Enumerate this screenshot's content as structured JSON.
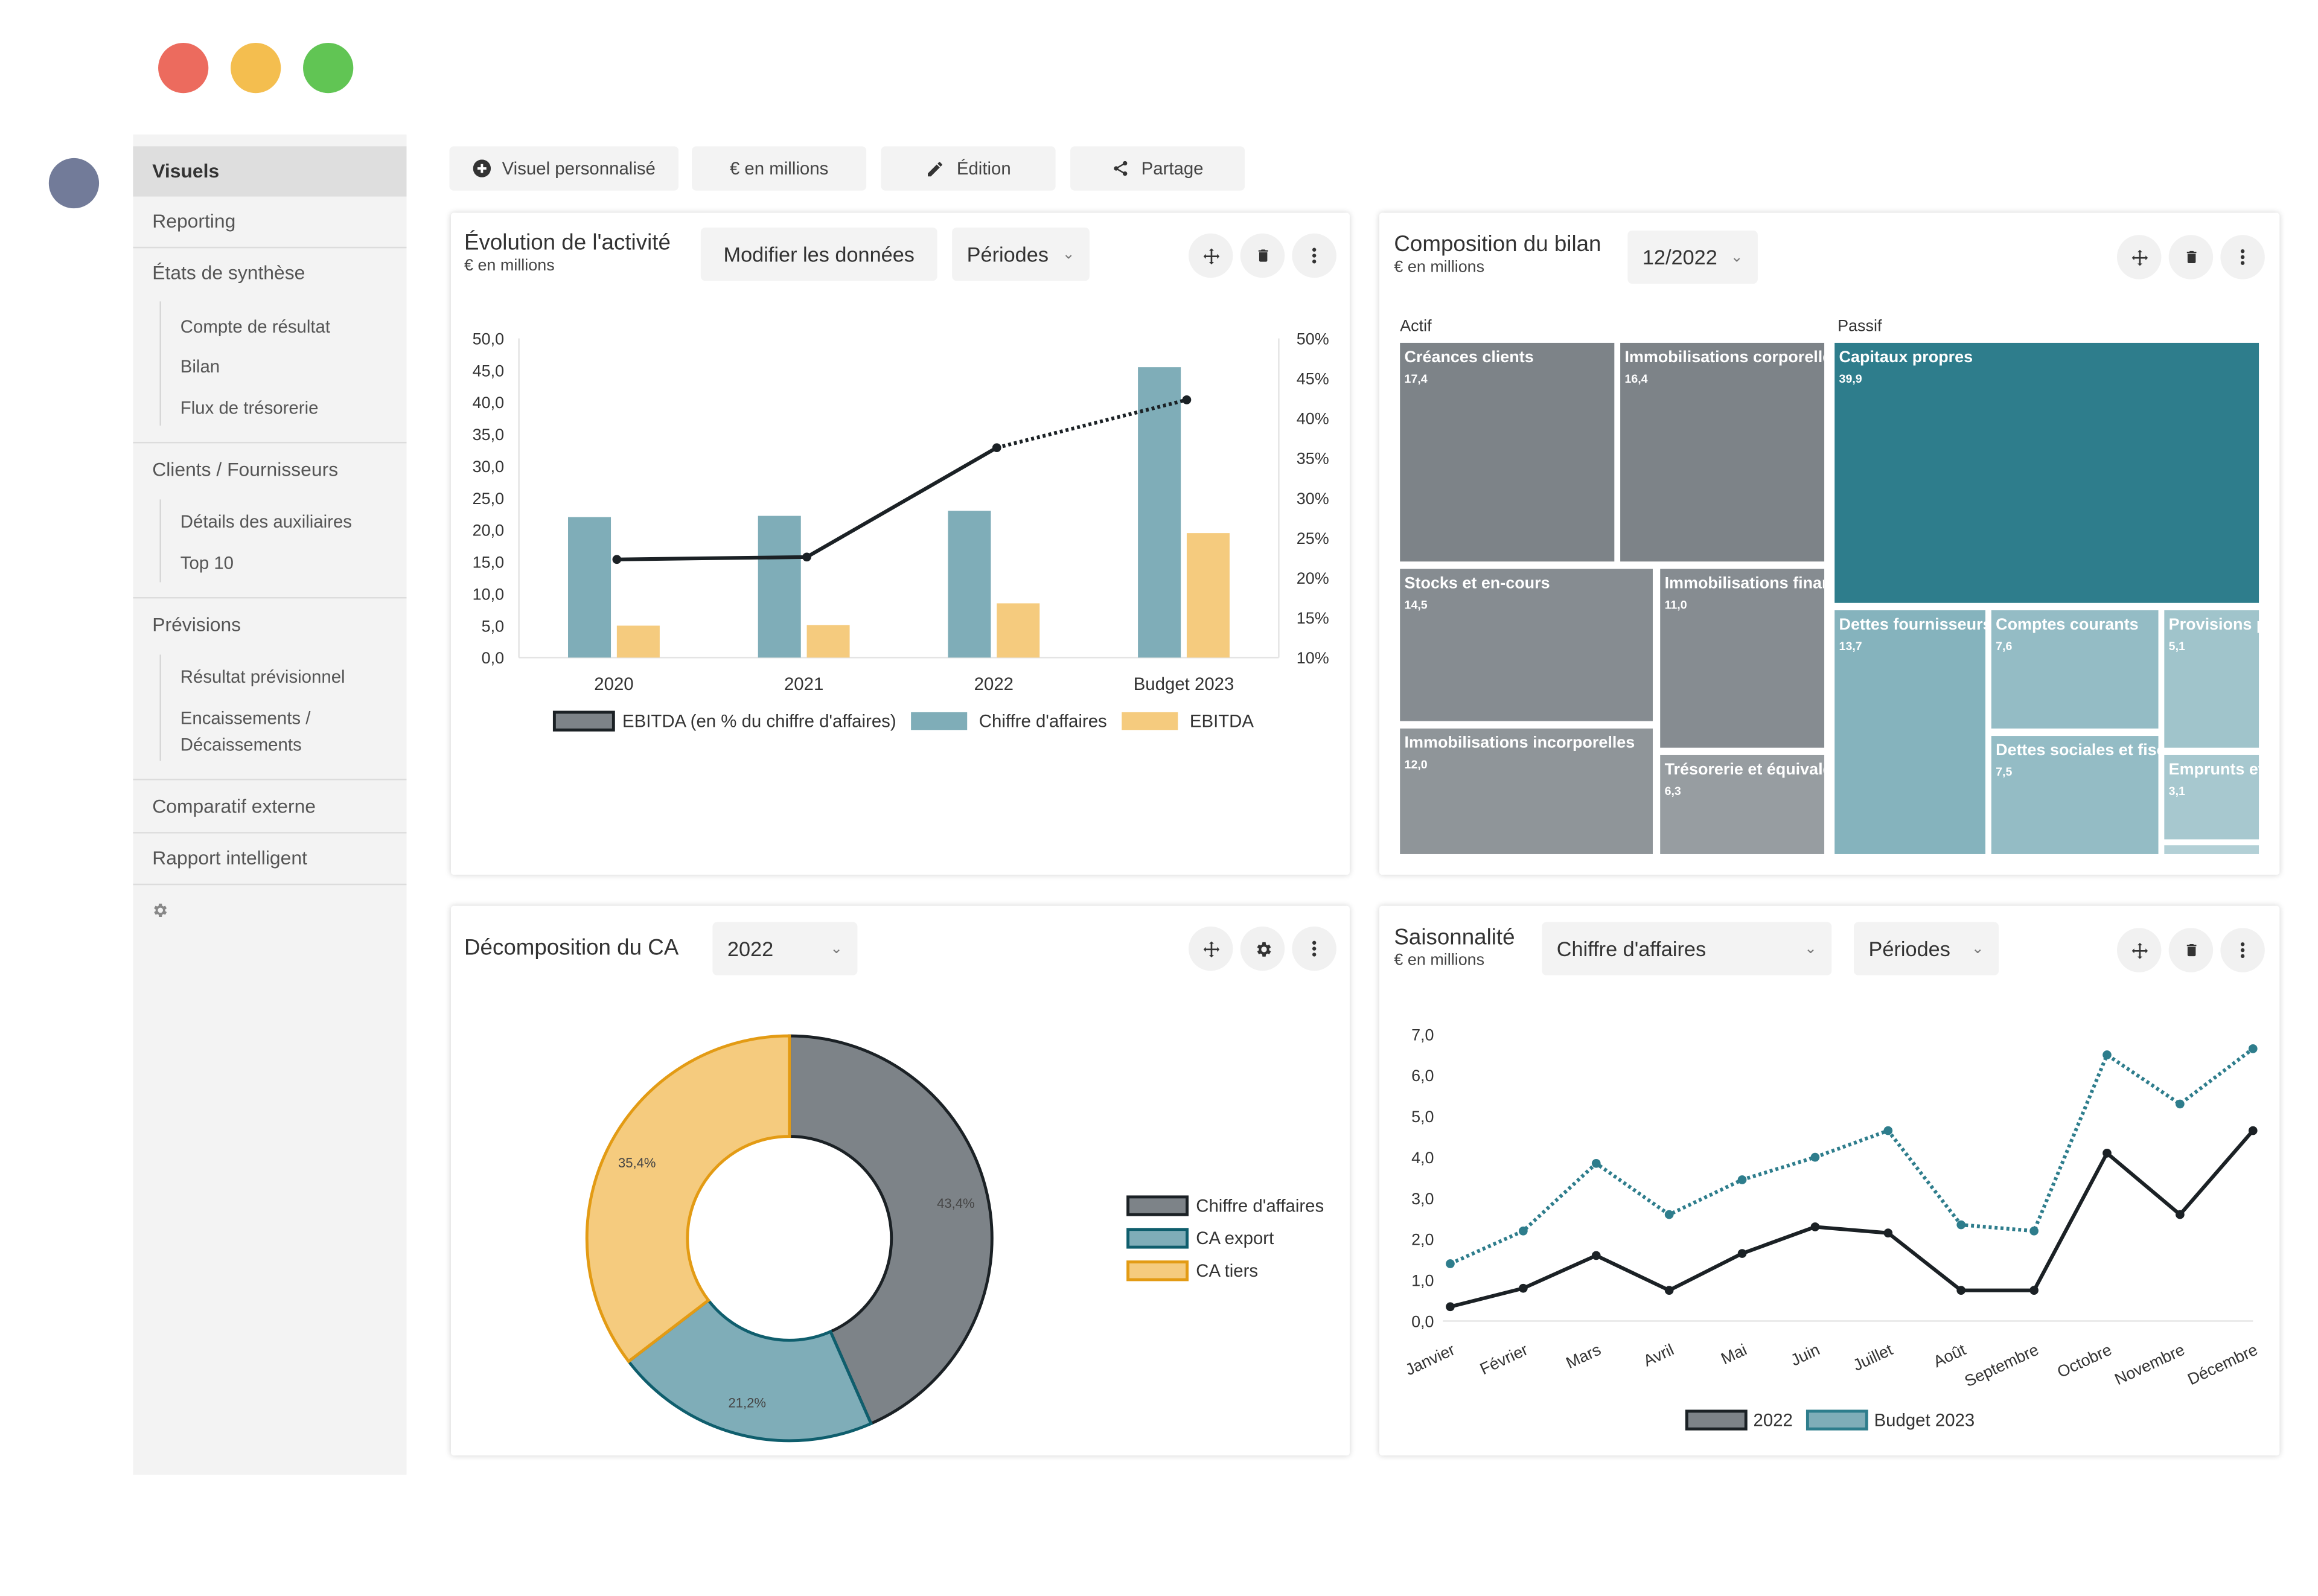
{
  "window": {
    "controls": {
      "close_color": "#ec6b5e",
      "minimize_color": "#f4be4f",
      "maximize_color": "#61c554"
    },
    "avatar_color": "#727b99"
  },
  "sidebar": {
    "items": [
      {
        "label": "Visuels"
      },
      {
        "label": "Reporting"
      },
      {
        "label": "États de synthèse",
        "children": [
          "Compte de résultat",
          "Bilan",
          "Flux de trésorerie"
        ]
      },
      {
        "label": "Clients / Fournisseurs",
        "children": [
          "Détails des auxiliaires",
          "Top 10"
        ]
      },
      {
        "label": "Prévisions",
        "children": [
          "Résultat prévisionnel",
          "Encaissements /",
          "Décaissements"
        ]
      },
      {
        "label": "Comparatif externe"
      },
      {
        "label": "Rapport intelligent"
      }
    ],
    "settings_icon": "gear-icon"
  },
  "toolbar": {
    "custom_visual": "Visuel personnalisé",
    "units": "€ en millions",
    "edit": "Édition",
    "share": "Partage"
  },
  "cards": {
    "activity": {
      "title": "Évolution de l'activité",
      "subtitle": "€ en millions",
      "modify_label": "Modifier les données",
      "periods_label": "Périodes"
    },
    "balance": {
      "title": "Composition du bilan",
      "subtitle": "€ en millions",
      "date_value": "12/2022",
      "actif_label": "Actif",
      "passif_label": "Passif",
      "tiles": [
        {
          "label": "Créances clients",
          "value": "17,4"
        },
        {
          "label": "Immobilisations corporelles",
          "value": "16,4"
        },
        {
          "label": "Stocks et en-cours",
          "value": "14,5"
        },
        {
          "label": "Immobilisations financières",
          "value": "11,0"
        },
        {
          "label": "Immobilisations incorporelles",
          "value": "12,0"
        },
        {
          "label": "Trésorerie et équivalents",
          "value": "6,3"
        },
        {
          "label": "Capitaux propres",
          "value": "39,9"
        },
        {
          "label": "Dettes fournisseurs",
          "value": "13,7"
        },
        {
          "label": "Comptes courants",
          "value": "7,6"
        },
        {
          "label": "Provisions pour risques",
          "value": "5,1"
        },
        {
          "label": "Dettes sociales et fiscales",
          "value": "7,5"
        },
        {
          "label": "Emprunts et dettes",
          "value": "3,1"
        }
      ]
    },
    "ca": {
      "title": "Décomposition du CA",
      "year_value": "2022"
    },
    "season": {
      "title": "Saisonnalité",
      "subtitle": "€ en millions",
      "metric_value": "Chiffre d'affaires",
      "periods_label": "Périodes"
    }
  },
  "chart_data": [
    {
      "type": "bar",
      "categories": [
        "2020",
        "2021",
        "2022",
        "Budget 2023"
      ],
      "series": [
        {
          "name": "Chiffre d'affaires",
          "values": [
            22.0,
            22.2,
            23.0,
            45.5
          ],
          "color": "#7fadb8"
        },
        {
          "name": "EBITDA",
          "values": [
            5.0,
            5.1,
            8.5,
            19.5
          ],
          "color": "#f5cb7e"
        },
        {
          "name": "EBITDA (en % du chiffre d'affaires)",
          "values": [
            22.3,
            22.6,
            36.3,
            42.3
          ],
          "axis": "right",
          "kind": "line",
          "color": "#1b2125"
        }
      ],
      "ylim": [
        0,
        50
      ],
      "yticks": [
        "0,0",
        "5,0",
        "10,0",
        "15,0",
        "20,0",
        "25,0",
        "30,0",
        "35,0",
        "40,0",
        "45,0",
        "50,0"
      ],
      "y2lim": [
        10,
        50
      ],
      "y2ticks": [
        "10%",
        "15%",
        "20%",
        "25%",
        "30%",
        "35%",
        "40%",
        "45%",
        "50%"
      ],
      "legend": "bottom"
    },
    {
      "type": "pie",
      "labels": [
        "Chiffre d'affaires",
        "CA export",
        "CA tiers"
      ],
      "values": [
        43.4,
        21.2,
        35.4
      ],
      "value_labels": [
        "43,4%",
        "21,2%",
        "35,4%"
      ],
      "colors": [
        "#7d8388",
        "#7fadb8",
        "#f5cb7e"
      ],
      "legend": "right"
    },
    {
      "type": "line",
      "categories": [
        "Janvier",
        "Février",
        "Mars",
        "Avril",
        "Mai",
        "Juin",
        "Juillet",
        "Août",
        "Septembre",
        "Octobre",
        "Novembre",
        "Décembre"
      ],
      "series": [
        {
          "name": "2022",
          "values": [
            0.35,
            0.8,
            1.6,
            0.75,
            1.65,
            2.3,
            2.15,
            0.75,
            0.75,
            4.1,
            2.6,
            4.65
          ],
          "color": "#1b2125"
        },
        {
          "name": "Budget 2023",
          "values": [
            1.4,
            2.2,
            3.85,
            2.6,
            3.45,
            4.0,
            4.65,
            2.35,
            2.2,
            6.5,
            5.3,
            6.65
          ],
          "color": "#2e7d8c"
        }
      ],
      "ylim": [
        0,
        7
      ],
      "yticks": [
        "0,0",
        "1,0",
        "2,0",
        "3,0",
        "4,0",
        "5,0",
        "6,0",
        "7,0"
      ],
      "legend": "bottom"
    }
  ]
}
